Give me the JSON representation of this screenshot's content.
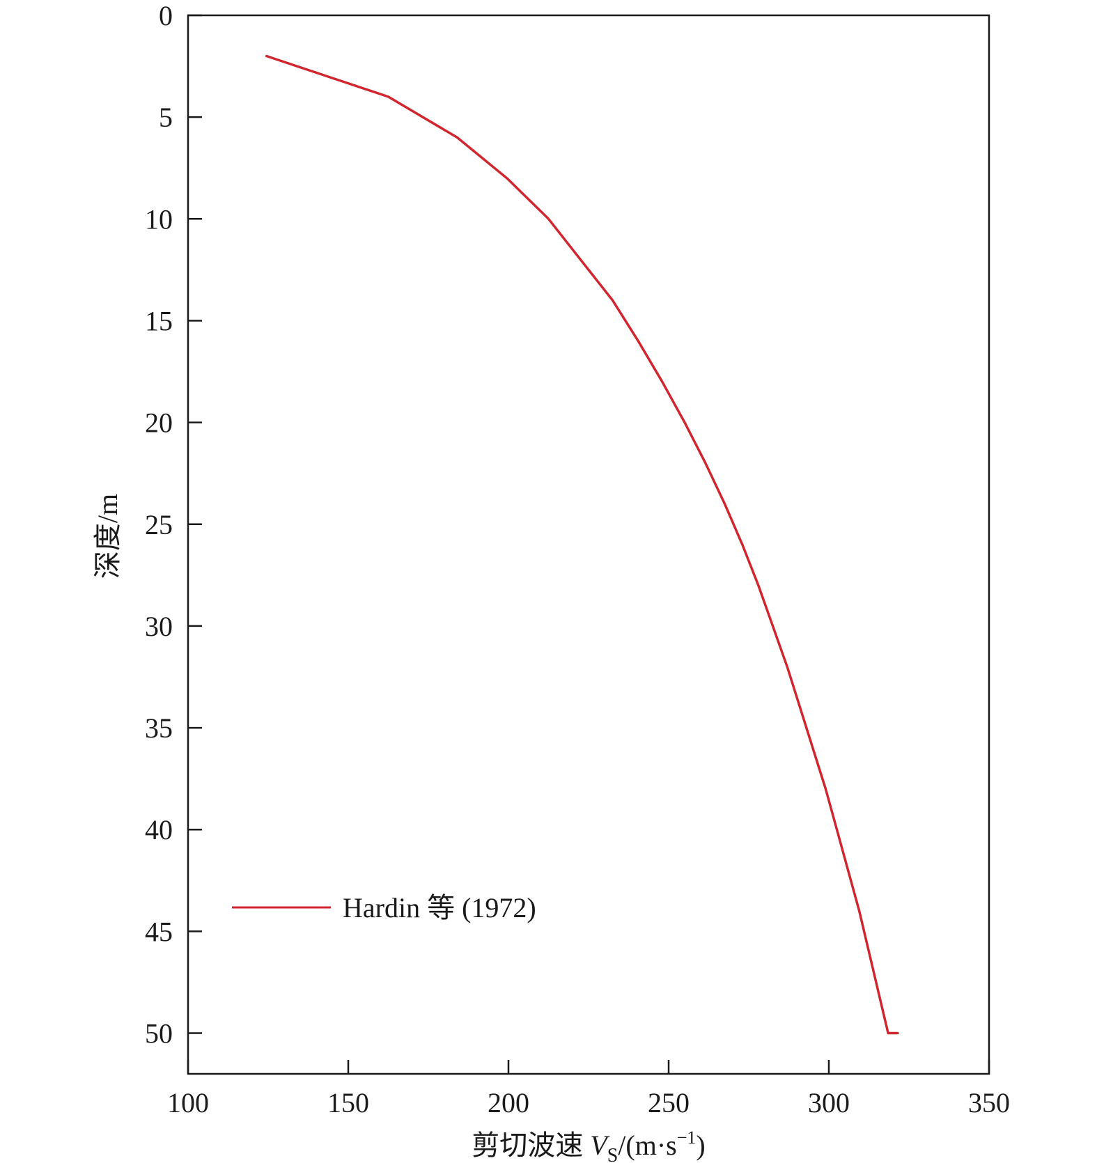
{
  "chart_data": {
    "type": "line",
    "xlabel": "剪切波速 Vₛ/(m·s⁻¹)",
    "xlabel_prefix": "剪切波速 ",
    "xlabel_symbol": "V",
    "xlabel_subscript": "S",
    "xlabel_unit_open": "/(m·s",
    "xlabel_unit_sup": "−1",
    "xlabel_unit_close": ")",
    "ylabel": "深度/m",
    "xlim": [
      100,
      350
    ],
    "ylim": [
      0,
      52
    ],
    "y_inverted": true,
    "xticks": [
      100,
      150,
      200,
      250,
      300,
      350
    ],
    "yticks": [
      0,
      5,
      10,
      15,
      20,
      25,
      30,
      35,
      40,
      45,
      50
    ],
    "grid": false,
    "legend_position": "lower-left",
    "series": [
      {
        "name": "Hardin 等 (1972)",
        "color": "#d0262f",
        "x": [
          124.5,
          162.5,
          184,
          199.5,
          212.5,
          222.5,
          232.5,
          240.5,
          248,
          255,
          261.5,
          267.5,
          273,
          278,
          282.5,
          287,
          291,
          295,
          299,
          302.5,
          306,
          309.5,
          312.5,
          315.5,
          318.5,
          321.5
        ],
        "y": [
          2,
          4,
          6,
          8,
          10,
          12,
          14,
          16,
          18,
          20,
          22,
          24,
          26,
          28,
          30,
          32,
          34,
          36,
          38,
          40,
          42,
          44,
          46,
          48,
          50,
          50
        ]
      }
    ]
  }
}
